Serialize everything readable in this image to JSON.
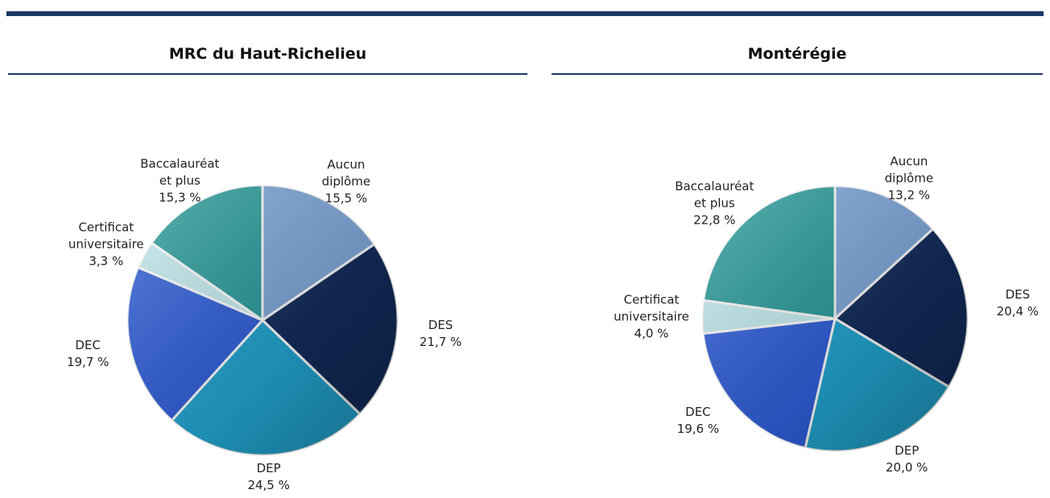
{
  "chart_data": [
    {
      "type": "pie",
      "title": "MRC du Haut-Richelieu",
      "categories": [
        "Aucun diplôme",
        "DES",
        "DEP",
        "DEC",
        "Certificat universitaire",
        "Baccalauréat et plus"
      ],
      "values": [
        15.5,
        21.7,
        24.5,
        19.7,
        3.3,
        15.3
      ],
      "value_labels": [
        "15,5 %",
        "21,7 %",
        "24,5 %",
        "19,7 %",
        "3,3 %",
        "15,3 %"
      ],
      "colors": [
        "#7fa9dc",
        "#132c5c",
        "#22a6d2",
        "#2f5fdc",
        "#c6eef3",
        "#2a9c9c"
      ]
    },
    {
      "type": "pie",
      "title": "Montérégie",
      "categories": [
        "Aucun diplôme",
        "DES",
        "DEP",
        "DEC",
        "Certificat universitaire",
        "Baccalauréat et plus"
      ],
      "values": [
        13.2,
        20.4,
        20.0,
        19.6,
        4.0,
        22.8
      ],
      "value_labels": [
        "13,2 %",
        "20,4 %",
        "20,0 %",
        "19,6 %",
        "4,0 %",
        "22,8 %"
      ],
      "colors": [
        "#7fa9dc",
        "#132c5c",
        "#22a6d2",
        "#2f5fdc",
        "#c6eef3",
        "#2a9c9c"
      ]
    }
  ]
}
